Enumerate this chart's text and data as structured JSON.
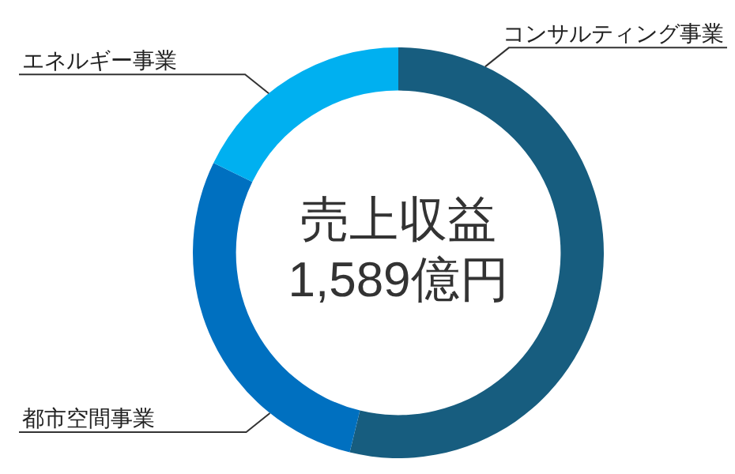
{
  "chart_data": {
    "type": "donut",
    "categories": [
      "コンサルティング事業",
      "都市空間事業",
      "エネルギー事業"
    ],
    "values": [
      53.8,
      28.4,
      17.8
    ],
    "colors": [
      "#175d7f",
      "#0070c0",
      "#00b0f0"
    ],
    "annotations": [
      "売上収益",
      "1,589億円"
    ]
  }
}
